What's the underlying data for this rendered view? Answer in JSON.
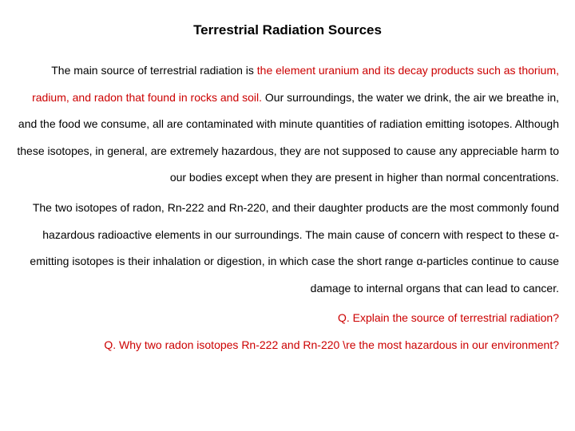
{
  "title": "Terrestrial Radiation Sources",
  "para1_pre": "The main source of terrestrial radiation is ",
  "para1_hl": "the element uranium and its decay products such as thorium, radium, and radon that found in rocks and soil.",
  "para1_rest": " Our surroundings, the water we drink, the air we breathe in, and the food we consume, all are contaminated with minute quantities of radiation emitting isotopes. Although these isotopes, in general, are extremely hazardous, they are not supposed to cause any appreciable harm to our bodies except when they are present in higher than normal concentrations.",
  "para2": "The two isotopes of radon, Rn-222 and Rn-220, and their daughter products are the most commonly found hazardous radioactive elements in our surroundings. The main cause of concern with respect to these α-emitting isotopes is their inhalation or digestion, in which case the short range α-particles continue to cause damage to internal organs that can lead to cancer.",
  "q1": "Q. Explain the source of terrestrial radiation?",
  "q2": "Q. Why two radon isotopes Rn-222 and Rn-220 \\re the most hazardous in our environment?",
  "colors": {
    "text": "#000000",
    "highlight": "#cc0000",
    "background": "#ffffff"
  },
  "fonts": {
    "title_size": 17,
    "body_size": 14,
    "family": "Arial"
  }
}
